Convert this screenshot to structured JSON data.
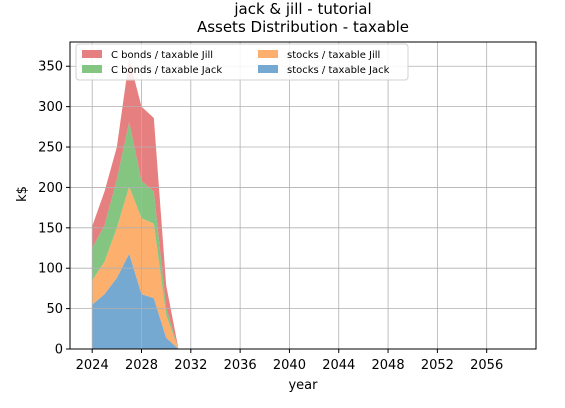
{
  "chart_data": {
    "type": "area",
    "title_lines": [
      "jack & jill - tutorial",
      "Assets Distribution - taxable"
    ],
    "xlabel": "year",
    "ylabel": "k$",
    "xlim": [
      2022.2,
      2060
    ],
    "ylim": [
      0,
      380
    ],
    "x_ticks": [
      2024,
      2028,
      2032,
      2036,
      2040,
      2044,
      2048,
      2052,
      2056
    ],
    "y_ticks": [
      0,
      50,
      100,
      150,
      200,
      250,
      300,
      350
    ],
    "grid": true,
    "stacked": true,
    "legend": {
      "placement": "top-left",
      "columns": 2,
      "order": [
        3,
        2,
        1,
        0
      ]
    },
    "x": [
      2024,
      2025,
      2026,
      2027,
      2028,
      2029,
      2030,
      2031
    ],
    "series": [
      {
        "name": "stocks / taxable Jack",
        "color": "#76a9d2",
        "values": [
          55,
          68,
          88,
          118,
          68,
          63,
          14,
          0
        ]
      },
      {
        "name": "stocks / taxable Jill",
        "color": "#fdaf6d",
        "values": [
          30,
          40,
          62,
          83,
          94,
          92,
          28,
          0
        ]
      },
      {
        "name": "C bonds / taxable Jack",
        "color": "#84c582",
        "values": [
          40,
          45,
          60,
          80,
          46,
          40,
          9,
          0
        ]
      },
      {
        "name": "C bonds / taxable Jill",
        "color": "#e67f7f",
        "values": [
          27,
          42,
          40,
          78,
          92,
          91,
          28,
          0
        ]
      }
    ]
  }
}
